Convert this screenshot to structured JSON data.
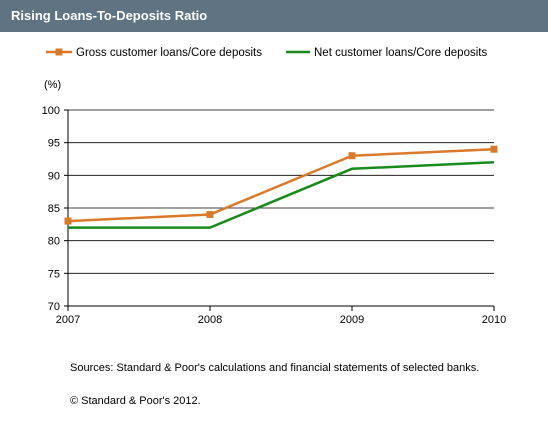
{
  "chart_data": {
    "type": "line",
    "title": "Rising Loans-To-Deposits Ratio",
    "unit_label": "(%)",
    "x": [
      "2007",
      "2008",
      "2009",
      "2010"
    ],
    "ylim": [
      70,
      100
    ],
    "yticks": [
      70,
      75,
      80,
      85,
      90,
      95,
      100
    ],
    "grid": true,
    "legend_position": "top",
    "series": [
      {
        "name": "Gross customer loans/Core deposits",
        "values": [
          83,
          84,
          93,
          94
        ],
        "color": "#d97a2b",
        "marker": "square"
      },
      {
        "name": "Net customer loans/Core deposits",
        "values": [
          82,
          82,
          91,
          92
        ],
        "color": "#1a8a1a",
        "marker": "none"
      }
    ]
  },
  "notes": {
    "sources": "Sources: Standard & Poor's calculations and financial statements of selected banks.",
    "copyright": "© Standard & Poor's 2012."
  }
}
